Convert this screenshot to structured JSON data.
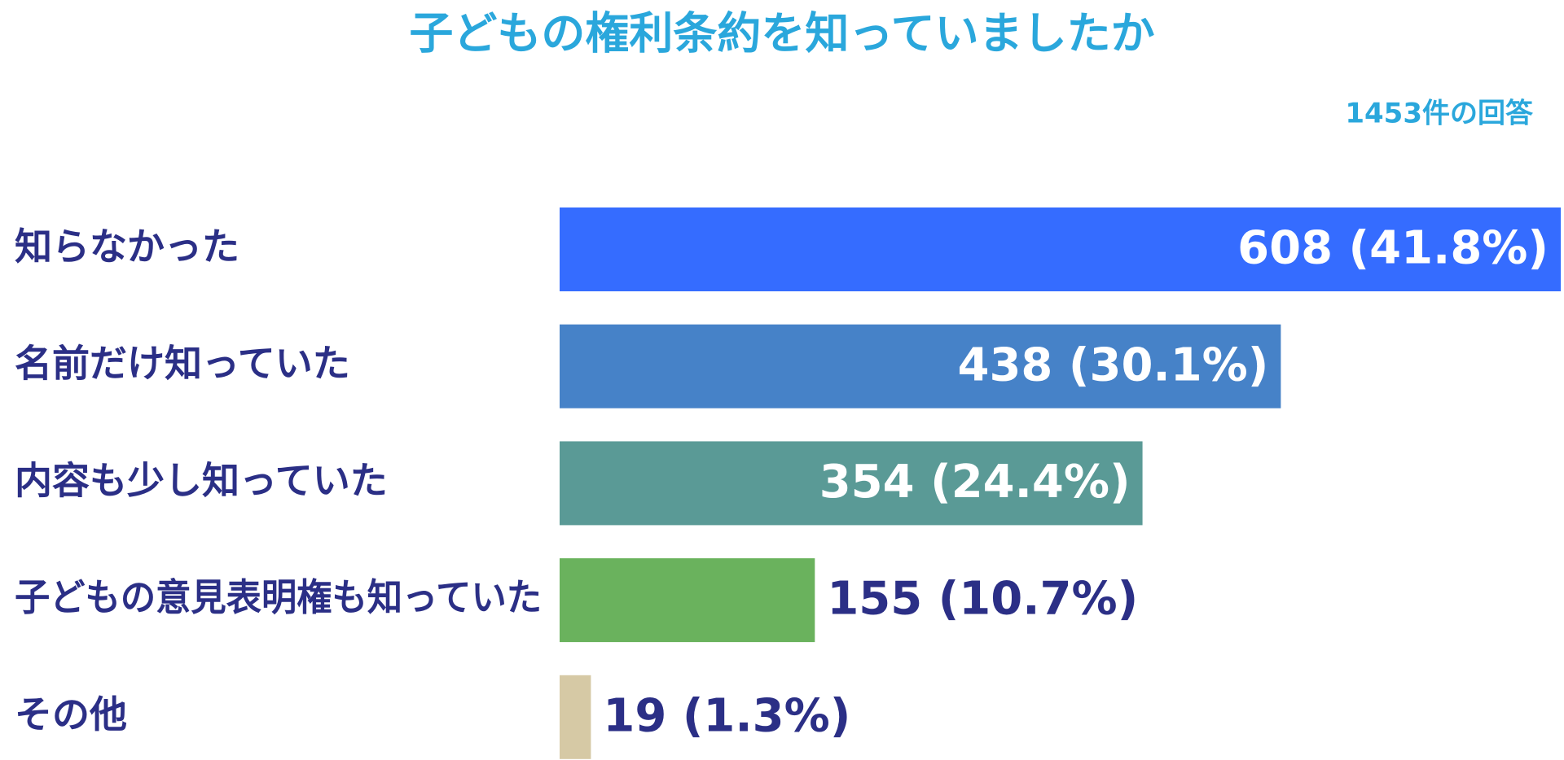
{
  "chart_data": {
    "type": "bar",
    "orientation": "horizontal",
    "title": "子どもの権利条約を知っていましたか",
    "subtitle": "1453件の回答",
    "categories": [
      "知らなかった",
      "名前だけ知っていた",
      "内容も少し知っていた",
      "子どもの意見表明権も知っていた",
      "その他"
    ],
    "values": [
      608,
      438,
      354,
      155,
      19
    ],
    "value_labels": [
      "608 (41.8%)",
      "438 (30.1%)",
      "354 (24.4%)",
      "155 (10.7%)",
      "19 (1.3%)"
    ],
    "colors": [
      "#356cff",
      "#4682c8",
      "#5a9a96",
      "#6ab25d",
      "#d6c9a5"
    ],
    "xlim": [
      0,
      608
    ]
  }
}
